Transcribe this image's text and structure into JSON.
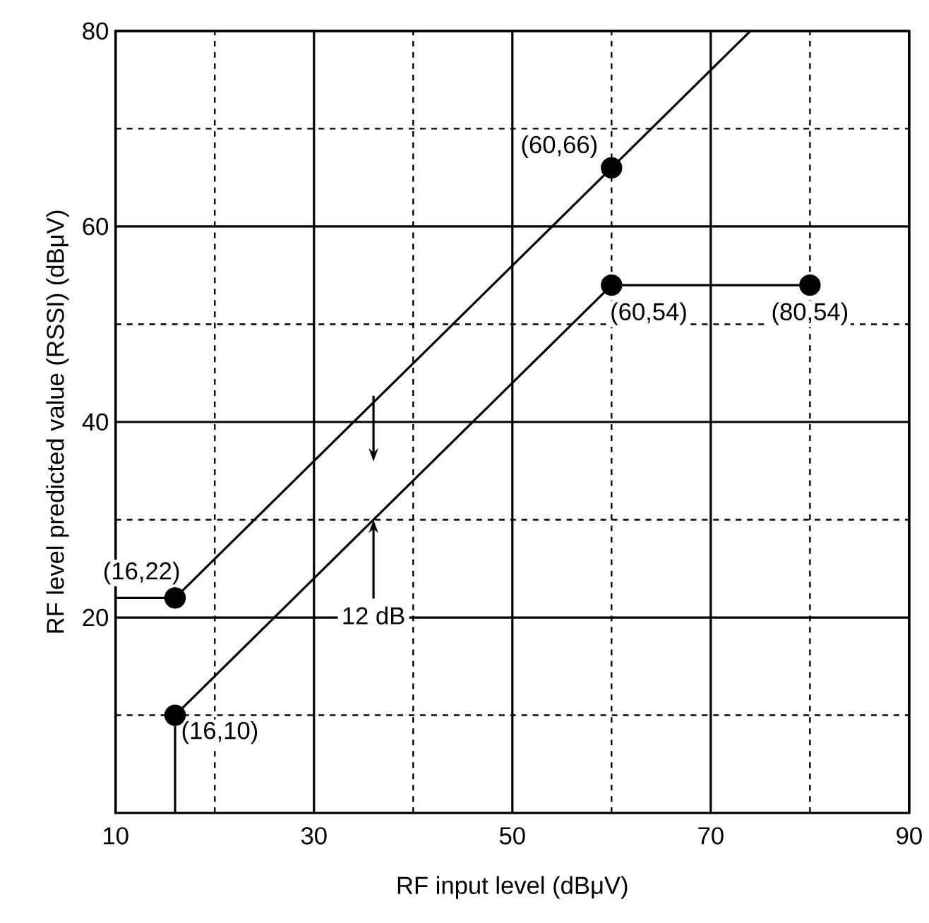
{
  "chart_data": {
    "type": "line",
    "xlabel": "RF input level (dBμV)",
    "ylabel": "RF level predicted value (RSSI) (dBμV)",
    "xlim": [
      10,
      90
    ],
    "ylim": [
      0,
      80
    ],
    "xticks": [
      10,
      {
        "value": 20,
        "label": null
      },
      30,
      {
        "value": 40,
        "label": null
      },
      50,
      {
        "value": 60,
        "label": null
      },
      70,
      {
        "value": 80,
        "label": null
      },
      90
    ],
    "yticks": [
      {
        "value": 10,
        "label": null
      },
      20,
      {
        "value": 30,
        "label": null
      },
      40,
      {
        "value": 50,
        "label": null
      },
      60,
      {
        "value": 70,
        "label": null
      },
      80
    ],
    "grid": true,
    "series": [
      {
        "color": "#000000",
        "x": [
          10,
          16,
          60,
          74
        ],
        "values": [
          22,
          22,
          66,
          80
        ],
        "marker": "none",
        "line_style": "solid"
      },
      {
        "color": "#000000",
        "x": [
          16,
          16,
          60,
          80
        ],
        "values": [
          0,
          10,
          54,
          54
        ],
        "marker": "none",
        "line_style": "solid"
      },
      {
        "type": "scatter",
        "color": "#000000",
        "x": [
          16,
          16,
          60,
          60,
          80
        ],
        "values": [
          22,
          10,
          66,
          54,
          54
        ],
        "marker": "circle"
      }
    ],
    "annotations": [
      {
        "text": "(16,22)",
        "x": 16,
        "y": 22
      },
      {
        "text": "(16,10)",
        "x": 16,
        "y": 10
      },
      {
        "text": "(60,66)",
        "x": 60,
        "y": 66
      },
      {
        "text": "(60,54)",
        "x": 60,
        "y": 54
      },
      {
        "text": "(80,54)",
        "x": 80,
        "y": 54
      },
      {
        "text": "12 dB",
        "x": 36,
        "y": 30
      }
    ]
  }
}
